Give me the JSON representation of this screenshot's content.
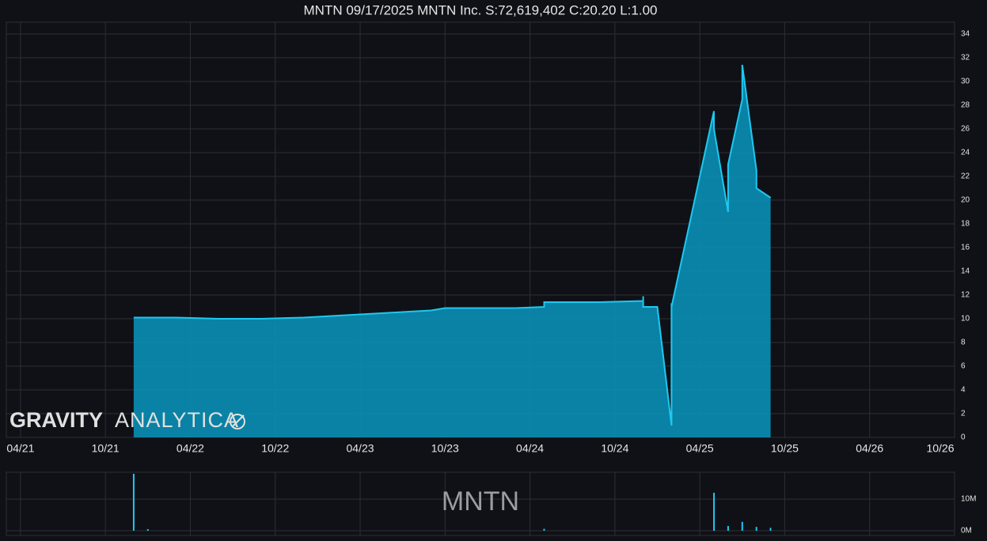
{
  "chart_data": [
    {
      "type": "area",
      "title": "MNTN 09/17/2025 MNTN Inc. S:72,619,402 C:20.20 L:1.00",
      "x": [
        "2021-12",
        "2022-03",
        "2022-06",
        "2022-09",
        "2022-12",
        "2023-03",
        "2023-06",
        "2023-09",
        "2023-10",
        "2024-03",
        "2024-05",
        "2024-05",
        "2024-09",
        "2024-12",
        "2024-12",
        "2024-12",
        "2025-01",
        "2025-02",
        "2025-02",
        "2025-02",
        "2025-05",
        "2025-05",
        "2025-06",
        "2025-06",
        "2025-07",
        "2025-07",
        "2025-08",
        "2025-08",
        "2025-09"
      ],
      "values": [
        10.1,
        10.1,
        10.0,
        10.0,
        10.1,
        10.3,
        10.5,
        10.7,
        10.9,
        10.9,
        11.0,
        11.4,
        11.4,
        11.5,
        11.9,
        11.0,
        11.0,
        1.0,
        11.3,
        11.0,
        27.5,
        26.0,
        19.0,
        23.0,
        28.5,
        31.4,
        22.5,
        21.0,
        20.2
      ],
      "color": "#1ec8f0",
      "xlim": [
        "2021-03",
        "2026-10"
      ],
      "xticks": [
        {
          "value": "2021-04",
          "label": "04/21"
        },
        {
          "value": "2021-10",
          "label": "10/21"
        },
        {
          "value": "2022-04",
          "label": "04/22"
        },
        {
          "value": "2022-10",
          "label": "10/22"
        },
        {
          "value": "2023-04",
          "label": "04/23"
        },
        {
          "value": "2023-10",
          "label": "10/23"
        },
        {
          "value": "2024-04",
          "label": "04/24"
        },
        {
          "value": "2024-10",
          "label": "10/24"
        },
        {
          "value": "2025-04",
          "label": "04/25"
        },
        {
          "value": "2025-10",
          "label": "10/25"
        },
        {
          "value": "2026-04",
          "label": "04/26"
        },
        {
          "value": "2026-10",
          "label": "10/26"
        }
      ],
      "ylim": [
        0,
        35
      ],
      "yticks": [
        0,
        2,
        4,
        6,
        8,
        10,
        12,
        14,
        16,
        18,
        20,
        22,
        24,
        26,
        28,
        30,
        32,
        34
      ],
      "grid": true,
      "watermark_bold": "GRAVITY",
      "watermark_light": "ANALYTICA"
    },
    {
      "type": "bar",
      "watermark": "MNTN",
      "x": [
        "2021-12",
        "2022-01",
        "2024-05",
        "2025-05",
        "2025-06",
        "2025-07",
        "2025-08",
        "2025-09"
      ],
      "values": [
        18000000,
        500000,
        600000,
        12000000,
        1500000,
        2800000,
        1200000,
        900000
      ],
      "color": "#1ec8f0",
      "xlim": [
        "2021-03",
        "2026-10"
      ],
      "ylim": [
        -1500000,
        18500000
      ],
      "yticks": [
        {
          "value": 0,
          "label": "0M"
        },
        {
          "value": 10000000,
          "label": "10M"
        }
      ],
      "grid": true
    }
  ]
}
